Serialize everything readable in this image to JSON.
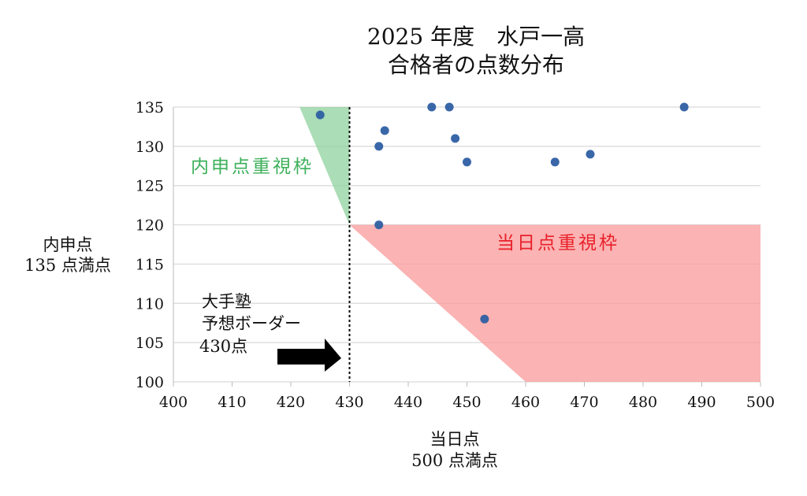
{
  "chart_data": {
    "type": "scatter",
    "title": [
      "2025 年度　水戸一高",
      "合格者の点数分布"
    ],
    "xlabel": [
      "当日点",
      "500 点満点"
    ],
    "ylabel": [
      "内申点",
      "135 点満点"
    ],
    "xlim": [
      400,
      500
    ],
    "ylim": [
      100,
      135
    ],
    "xticks": [
      400,
      410,
      420,
      430,
      440,
      450,
      460,
      470,
      480,
      490,
      500
    ],
    "yticks": [
      100,
      105,
      110,
      115,
      120,
      125,
      130,
      135
    ],
    "grid": "horizontal",
    "point_color": "#2e5fa3",
    "points": [
      {
        "x": 425,
        "y": 134
      },
      {
        "x": 435,
        "y": 130
      },
      {
        "x": 435,
        "y": 120
      },
      {
        "x": 436,
        "y": 132
      },
      {
        "x": 444,
        "y": 135
      },
      {
        "x": 447,
        "y": 135
      },
      {
        "x": 448,
        "y": 131
      },
      {
        "x": 450,
        "y": 128
      },
      {
        "x": 453,
        "y": 108
      },
      {
        "x": 465,
        "y": 128
      },
      {
        "x": 471,
        "y": 129
      },
      {
        "x": 487,
        "y": 135
      }
    ],
    "regions": [
      {
        "label": "内申点重視枠",
        "color": "#8fd19e",
        "text_color": "#3cb05a",
        "polygon": [
          [
            421.5,
            135
          ],
          [
            430,
            135
          ],
          [
            430,
            120
          ]
        ]
      },
      {
        "label": "当日点重視枠",
        "color": "#f99a9a",
        "text_color": "#e8202a",
        "polygon": [
          [
            430,
            120
          ],
          [
            500,
            120
          ],
          [
            500,
            100
          ],
          [
            460,
            100
          ]
        ]
      }
    ],
    "border_line": {
      "x": 430,
      "style": "dotted"
    },
    "annotation": [
      "大手塾",
      "予想ボーダー",
      "430点"
    ]
  }
}
